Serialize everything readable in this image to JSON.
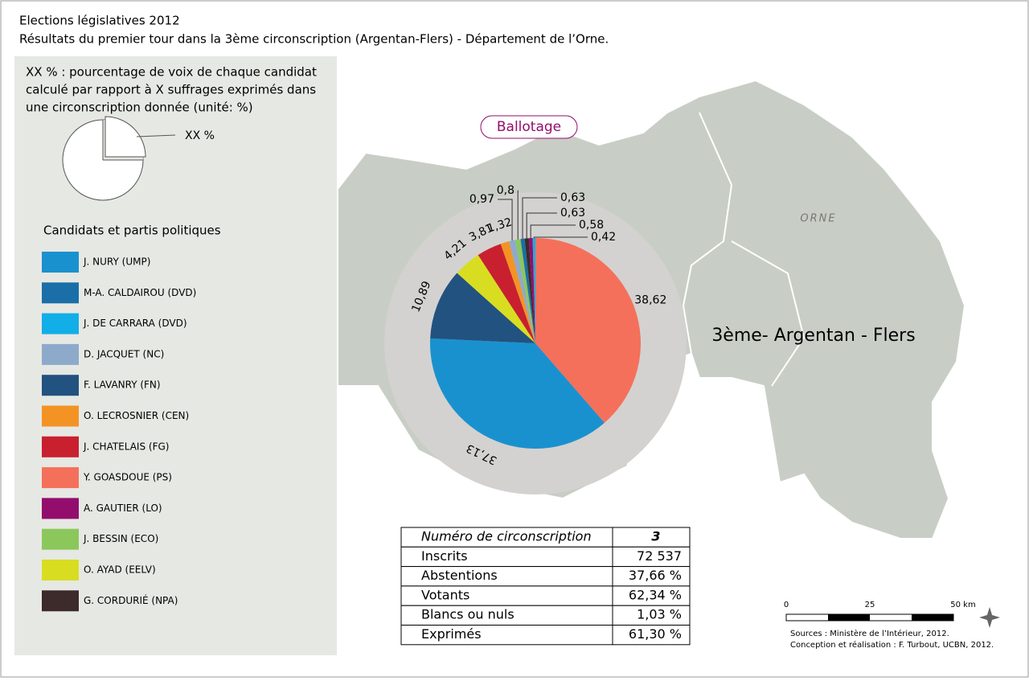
{
  "header": {
    "title": "Elections législatives 2012",
    "subtitle": "Résultats du premier tour dans la 3ème circonscription (Argentan-Flers) - Département de l’Orne."
  },
  "legend": {
    "note_lines": [
      "XX % : pourcentage de voix de chaque candidat",
      "calculé par rapport à X suffrages exprimés dans",
      "une circonscription donnée (unité: %)"
    ],
    "sample_label": "XX %",
    "heading": "Candidats et partis politiques",
    "entries": [
      {
        "name": "J. NURY (UMP)",
        "color": "#1a91cf"
      },
      {
        "name": "M-A. CALDAIROU (DVD)",
        "color": "#1a6fa8"
      },
      {
        "name": "J. DE CARRARA (DVD)",
        "color": "#12aee8"
      },
      {
        "name": "D. JACQUET (NC)",
        "color": "#8eaacb"
      },
      {
        "name": "F. LAVANRY (FN)",
        "color": "#22527f"
      },
      {
        "name": "O. LECROSNIER (CEN)",
        "color": "#f39324"
      },
      {
        "name": "J. CHATELAIS (FG)",
        "color": "#c8202f"
      },
      {
        "name": "Y. GOASDOUE (PS)",
        "color": "#f4705a"
      },
      {
        "name": "A. GAUTIER (LO)",
        "color": "#930d6d"
      },
      {
        "name": "J. BESSIN (ECO)",
        "color": "#8cc75b"
      },
      {
        "name": "O. AYAD (EELV)",
        "color": "#d8dd22"
      },
      {
        "name": "G. CORDURIÉ (NPA)",
        "color": "#3d2a2a"
      }
    ]
  },
  "badge": "Ballotage",
  "chart_data": {
    "type": "pie",
    "values": [
      38.62,
      37.13,
      10.89,
      4.21,
      3.81,
      1.32,
      0.97,
      0.8,
      0.63,
      0.63,
      0.58,
      0.42
    ],
    "value_labels": [
      "38,62",
      "37,13",
      "10,89",
      "4,21",
      "3,81",
      "1,32",
      "0,97",
      "0,8",
      "0,63",
      "0,63",
      "0,58",
      "0,42"
    ],
    "colors": [
      "#f4705a",
      "#1a91cf",
      "#22527f",
      "#d8dd22",
      "#c8202f",
      "#f39324",
      "#8eaacb",
      "#8cc75b",
      "#1a6fa8",
      "#3d2a2a",
      "#930d6d",
      "#12aee8"
    ]
  },
  "map": {
    "department": "ORNE",
    "district": "3ème- Argentan - Flers"
  },
  "table": {
    "rows": [
      [
        "Numéro de circonscription",
        "3"
      ],
      [
        "Inscrits",
        "72 537"
      ],
      [
        "Abstentions",
        "37,66 %"
      ],
      [
        "Votants",
        "62,34 %"
      ],
      [
        "Blancs ou nuls",
        "1,03 %"
      ],
      [
        "Exprimés",
        "61,30 %"
      ]
    ]
  },
  "scale": {
    "ticks": [
      "0",
      "25",
      "50 km"
    ]
  },
  "sources": [
    "Sources : Ministère de l’Intérieur, 2012.",
    "Conception et réalisation : F. Turbout, UCBN, 2012."
  ]
}
